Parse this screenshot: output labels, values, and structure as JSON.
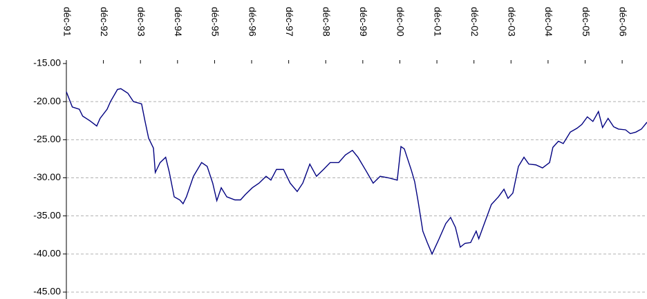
{
  "chart_data": {
    "type": "line",
    "x": [
      1991.92,
      1992.08,
      1992.27,
      1992.36,
      1992.55,
      1992.74,
      1992.83,
      1993.02,
      1993.11,
      1993.3,
      1993.39,
      1993.58,
      1993.73,
      1993.95,
      1994.04,
      1994.14,
      1994.27,
      1994.32,
      1994.45,
      1994.6,
      1994.7,
      1994.83,
      1994.98,
      1995.07,
      1995.16,
      1995.35,
      1995.57,
      1995.72,
      1995.87,
      1995.98,
      1996.1,
      1996.25,
      1996.47,
      1996.62,
      1996.75,
      1996.94,
      1997.12,
      1997.31,
      1997.44,
      1997.59,
      1997.78,
      1997.96,
      1998.15,
      1998.3,
      1998.49,
      1998.67,
      1998.86,
      1999.04,
      1999.27,
      1999.45,
      1999.64,
      1999.79,
      2000.01,
      2000.2,
      2000.39,
      2000.61,
      2000.85,
      2000.95,
      2001.04,
      2001.23,
      2001.32,
      2001.41,
      2001.54,
      2001.66,
      2001.79,
      2001.98,
      2002.16,
      2002.29,
      2002.42,
      2002.55,
      2002.68,
      2002.83,
      2002.98,
      2003.05,
      2003.2,
      2003.39,
      2003.58,
      2003.73,
      2003.84,
      2003.97,
      2004.12,
      2004.27,
      2004.4,
      2004.59,
      2004.77,
      2004.96,
      2005.05,
      2005.2,
      2005.33,
      2005.52,
      2005.7,
      2005.83,
      2005.98,
      2006.13,
      2006.28,
      2006.39,
      2006.54,
      2006.69,
      2006.82,
      2007.01,
      2007.14,
      2007.29,
      2007.44,
      2007.59
    ],
    "series": [
      {
        "color": "#000080",
        "values": [
          -18.7,
          -20.7,
          -21,
          -21.9,
          -22.5,
          -23.2,
          -22.2,
          -21,
          -20,
          -18.4,
          -18.3,
          -18.9,
          -20,
          -20.3,
          -22.5,
          -24.8,
          -26.1,
          -29.3,
          -28,
          -27.3,
          -29.3,
          -32.5,
          -32.9,
          -33.4,
          -32.5,
          -29.8,
          -28,
          -28.5,
          -30.7,
          -33,
          -31.3,
          -32.5,
          -32.9,
          -32.9,
          -32.2,
          -31.3,
          -30.7,
          -29.8,
          -30.3,
          -28.9,
          -28.9,
          -30.7,
          -31.8,
          -30.7,
          -28.2,
          -29.8,
          -28.9,
          -28,
          -28,
          -27,
          -26.4,
          -27.3,
          -29.1,
          -30.7,
          -29.8,
          -30,
          -30.3,
          -25.9,
          -26.2,
          -29,
          -30.5,
          -33,
          -37,
          -38.5,
          -40,
          -38,
          -36,
          -35.2,
          -36.5,
          -39.1,
          -38.6,
          -38.5,
          -37,
          -38,
          -36,
          -33.5,
          -32.5,
          -31.5,
          -32.7,
          -32,
          -28.5,
          -27.3,
          -28.2,
          -28.3,
          -28.7,
          -28,
          -26,
          -25.2,
          -25.5,
          -24,
          -23.5,
          -23,
          -22,
          -22.6,
          -21.3,
          -23.4,
          -22.2,
          -23.3,
          -23.6,
          -23.7,
          -24.2,
          -24,
          -23.6,
          -22.7
        ]
      }
    ],
    "xlim": [
      1991.92,
      2007.59
    ],
    "xticks": [
      {
        "value": 1991.92,
        "label": "déc-91"
      },
      {
        "value": 1992.92,
        "label": "déc-92"
      },
      {
        "value": 1993.92,
        "label": "déc-93"
      },
      {
        "value": 1994.92,
        "label": "déc-94"
      },
      {
        "value": 1995.92,
        "label": "déc-95"
      },
      {
        "value": 1996.92,
        "label": "déc-96"
      },
      {
        "value": 1997.92,
        "label": "déc-97"
      },
      {
        "value": 1998.92,
        "label": "déc-98"
      },
      {
        "value": 1999.92,
        "label": "déc-99"
      },
      {
        "value": 2000.92,
        "label": "déc-00"
      },
      {
        "value": 2001.92,
        "label": "déc-01"
      },
      {
        "value": 2002.92,
        "label": "déc-02"
      },
      {
        "value": 2003.92,
        "label": "déc-03"
      },
      {
        "value": 2004.92,
        "label": "déc-04"
      },
      {
        "value": 2005.92,
        "label": "déc-05"
      },
      {
        "value": 2006.92,
        "label": "déc-06"
      }
    ],
    "ylim": [
      -45,
      -15
    ],
    "yticks": [
      {
        "value": -15,
        "label": "-15.00"
      },
      {
        "value": -20,
        "label": "-20.00"
      },
      {
        "value": -25,
        "label": "-25.00"
      },
      {
        "value": -30,
        "label": "-30.00"
      },
      {
        "value": -35,
        "label": "-35.00"
      },
      {
        "value": -40,
        "label": "-40.00"
      },
      {
        "value": -45,
        "label": "-45.00"
      }
    ],
    "grid": true
  }
}
